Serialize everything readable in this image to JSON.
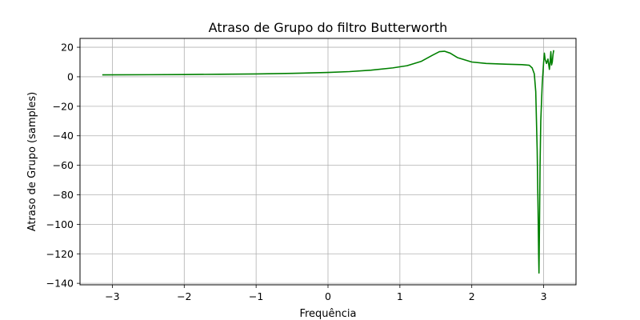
{
  "chart_data": {
    "type": "line",
    "title": "Atraso de Grupo do filtro Butterworth",
    "xlabel": "Frequência",
    "ylabel": "Atraso de Grupo (samples)",
    "xlim": [
      -3.45,
      3.45
    ],
    "ylim": [
      -141,
      26
    ],
    "xticks": [
      -3,
      -2,
      -1,
      0,
      1,
      2,
      3
    ],
    "xtick_labels": [
      "−3",
      "−2",
      "−1",
      "0",
      "1",
      "2",
      "3"
    ],
    "yticks": [
      20,
      0,
      -20,
      -40,
      -60,
      -80,
      -100,
      -120,
      -140
    ],
    "ytick_labels": [
      "20",
      "0",
      "−20",
      "−40",
      "−60",
      "−80",
      "−100",
      "−120",
      "−140"
    ],
    "grid": true,
    "series": [
      {
        "color": "#008000",
        "x": [
          -3.14,
          -2.5,
          -2.0,
          -1.5,
          -1.0,
          -0.5,
          0.0,
          0.3,
          0.6,
          0.9,
          1.1,
          1.3,
          1.45,
          1.55,
          1.62,
          1.7,
          1.8,
          2.0,
          2.2,
          2.5,
          2.7,
          2.8,
          2.84,
          2.87,
          2.89,
          2.91,
          2.925,
          2.93,
          2.935,
          2.94,
          2.95,
          2.96,
          2.98,
          3.0,
          3.01,
          3.02,
          3.04,
          3.06,
          3.08,
          3.09,
          3.1,
          3.11,
          3.12,
          3.13,
          3.14
        ],
        "y": [
          1.3,
          1.4,
          1.5,
          1.7,
          1.9,
          2.3,
          2.9,
          3.5,
          4.5,
          6.0,
          7.5,
          10.5,
          14.5,
          17.0,
          17.3,
          16.0,
          13.0,
          10.0,
          9.0,
          8.5,
          8.2,
          7.8,
          6.0,
          2.0,
          -10.0,
          -50.0,
          -100.0,
          -120.0,
          -133.0,
          -110.0,
          -60.0,
          -30.0,
          -5.0,
          10.0,
          16.0,
          12.0,
          9.0,
          12.0,
          5.0,
          10.0,
          17.0,
          8.0,
          10.0,
          15.0,
          18.0
        ]
      }
    ]
  }
}
